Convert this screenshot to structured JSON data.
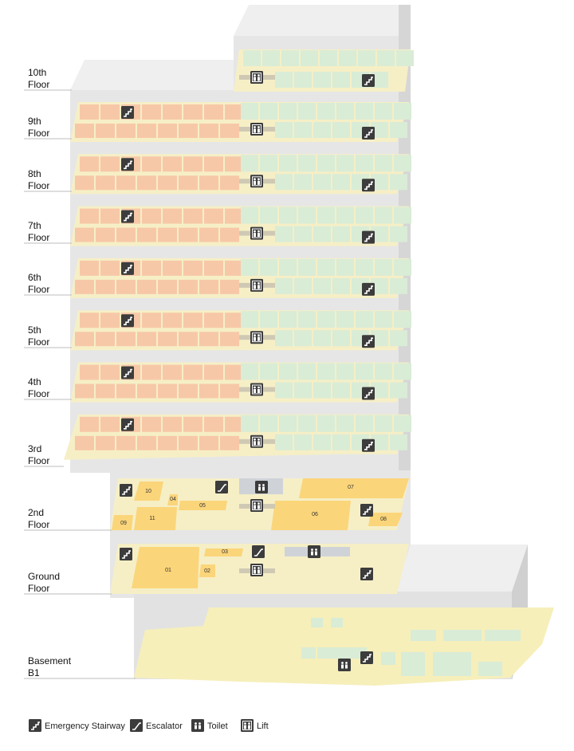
{
  "floors": [
    {
      "label": [
        "10th",
        "Floor"
      ]
    },
    {
      "label": [
        "9th",
        "Floor"
      ]
    },
    {
      "label": [
        "8th",
        "Floor"
      ]
    },
    {
      "label": [
        "7th",
        "Floor"
      ]
    },
    {
      "label": [
        "6th",
        "Floor"
      ]
    },
    {
      "label": [
        "5th",
        "Floor"
      ]
    },
    {
      "label": [
        "4th",
        "Floor"
      ]
    },
    {
      "label": [
        "3rd",
        "Floor"
      ]
    },
    {
      "label": [
        "2nd",
        "Floor"
      ],
      "units": [
        "10",
        "04",
        "05",
        "07",
        "06",
        "08",
        "09",
        "11"
      ]
    },
    {
      "label": [
        "Ground",
        "Floor"
      ],
      "units": [
        "03",
        "01",
        "02"
      ]
    },
    {
      "label": [
        "Basement",
        "B1"
      ]
    }
  ],
  "legend": [
    "Emergency Stairway",
    "Escalator",
    "Toilet",
    "Lift"
  ]
}
